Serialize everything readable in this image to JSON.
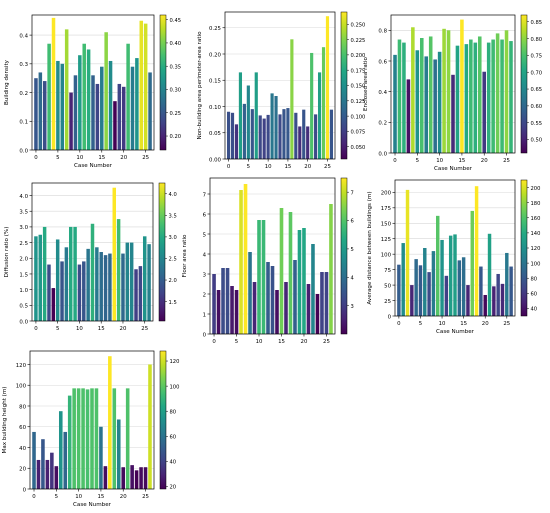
{
  "chart_data": [
    {
      "type": "bar",
      "xlabel": "Case Number",
      "ylabel": "Building density",
      "x": [
        0,
        1,
        2,
        3,
        4,
        5,
        6,
        7,
        8,
        9,
        10,
        11,
        12,
        13,
        14,
        15,
        16,
        17,
        18,
        19,
        20,
        21,
        22,
        23,
        24,
        25,
        26
      ],
      "values": [
        0.25,
        0.27,
        0.24,
        0.37,
        0.46,
        0.31,
        0.3,
        0.42,
        0.2,
        0.26,
        0.33,
        0.37,
        0.35,
        0.26,
        0.23,
        0.29,
        0.41,
        0.31,
        0.17,
        0.23,
        0.22,
        0.37,
        0.29,
        0.32,
        0.45,
        0.44,
        0.27
      ],
      "xticks": [
        0,
        5,
        10,
        15,
        20,
        25
      ],
      "yticks": [
        0.0,
        0.1,
        0.2,
        0.3,
        0.4
      ],
      "ylim": [
        0,
        0.47
      ],
      "colorbar": {
        "min": 0.17,
        "max": 0.46,
        "ticks": [
          0.2,
          0.25,
          0.3,
          0.35,
          0.4,
          0.45
        ]
      }
    },
    {
      "type": "bar",
      "xlabel": "",
      "ylabel": "Non-building area perimeter-area ratio",
      "x": [
        0,
        1,
        2,
        3,
        4,
        5,
        6,
        7,
        8,
        9,
        10,
        11,
        12,
        13,
        14,
        15,
        16,
        17,
        18,
        19,
        20,
        21,
        22,
        23,
        24,
        25,
        26
      ],
      "values": [
        0.09,
        0.088,
        0.066,
        0.165,
        0.105,
        0.14,
        0.095,
        0.165,
        0.083,
        0.077,
        0.084,
        0.125,
        0.12,
        0.085,
        0.095,
        0.097,
        0.228,
        0.088,
        0.062,
        0.094,
        0.062,
        0.202,
        0.085,
        0.165,
        0.213,
        0.272,
        0.094
      ],
      "xticks": [
        0,
        5,
        10,
        15,
        20,
        25
      ],
      "yticks": [
        0.0,
        0.05,
        0.1,
        0.15,
        0.2,
        0.25
      ],
      "ylim": [
        0,
        0.28
      ],
      "colorbar": {
        "min": 0.03,
        "max": 0.27,
        "ticks": [
          0.05,
          0.075,
          0.1,
          0.125,
          0.15,
          0.175,
          0.2,
          0.225,
          0.25
        ]
      }
    },
    {
      "type": "bar",
      "xlabel": "Case Number",
      "ylabel": "Enclosed area ratio",
      "x": [
        0,
        1,
        2,
        3,
        4,
        5,
        6,
        7,
        8,
        9,
        10,
        11,
        12,
        13,
        14,
        15,
        16,
        17,
        18,
        19,
        20,
        21,
        22,
        23,
        24,
        25,
        26
      ],
      "values": [
        0.64,
        0.74,
        0.72,
        0.48,
        0.82,
        0.67,
        0.75,
        0.63,
        0.76,
        0.61,
        0.66,
        0.81,
        0.8,
        0.51,
        0.7,
        0.87,
        0.71,
        0.74,
        0.72,
        0.76,
        0.53,
        0.72,
        0.74,
        0.78,
        0.74,
        0.8,
        0.73
      ],
      "xticks": [
        0,
        5,
        10,
        15,
        20,
        25
      ],
      "yticks": [
        0.0,
        0.2,
        0.4,
        0.6,
        0.8
      ],
      "ylim": [
        0,
        0.9
      ],
      "colorbar": {
        "min": 0.46,
        "max": 0.87,
        "ticks": [
          0.5,
          0.55,
          0.6,
          0.65,
          0.7,
          0.75,
          0.8,
          0.85
        ]
      }
    },
    {
      "type": "bar",
      "xlabel": "",
      "ylabel": "Diffusion ratio (%)",
      "x": [
        0,
        1,
        2,
        3,
        4,
        5,
        6,
        7,
        8,
        9,
        10,
        11,
        12,
        13,
        14,
        15,
        16,
        17,
        18,
        19,
        20,
        21,
        22,
        23,
        24,
        25,
        26
      ],
      "values": [
        2.7,
        2.75,
        3.0,
        1.8,
        1.05,
        2.6,
        1.9,
        2.35,
        3.0,
        3.0,
        1.8,
        1.9,
        2.3,
        3.1,
        2.35,
        2.2,
        2.1,
        2.15,
        4.25,
        3.25,
        2.15,
        2.5,
        2.5,
        1.65,
        1.75,
        2.7,
        2.45
      ],
      "xticks": [
        0,
        5,
        10,
        15,
        20,
        25
      ],
      "yticks": [
        0.0,
        0.5,
        1.0,
        1.5,
        2.0,
        2.5,
        3.0,
        3.5,
        4.0
      ],
      "ylim": [
        0,
        4.4
      ],
      "colorbar": {
        "min": 1.05,
        "max": 4.25,
        "ticks": [
          1.5,
          2.0,
          2.5,
          3.0,
          3.5,
          4.0
        ]
      }
    },
    {
      "type": "bar",
      "xlabel": "Case Number",
      "ylabel": "Floor area ratio",
      "x": [
        0,
        1,
        2,
        3,
        4,
        5,
        6,
        7,
        8,
        9,
        10,
        11,
        12,
        13,
        14,
        15,
        16,
        17,
        18,
        19,
        20,
        21,
        22,
        23,
        24,
        25,
        26
      ],
      "values": [
        3.0,
        2.2,
        3.3,
        3.3,
        2.4,
        2.2,
        7.2,
        7.5,
        4.1,
        2.6,
        5.7,
        5.7,
        3.6,
        3.4,
        2.2,
        6.3,
        2.6,
        6.1,
        3.7,
        5.2,
        5.3,
        2.5,
        4.5,
        2.0,
        3.1,
        3.1,
        6.5
      ],
      "xticks": [
        0,
        5,
        10,
        15,
        20,
        25
      ],
      "yticks": [
        0,
        1,
        2,
        3,
        4,
        5,
        6,
        7
      ],
      "ylim": [
        0,
        7.8
      ],
      "colorbar": {
        "min": 2.0,
        "max": 7.5,
        "ticks": [
          3,
          4,
          5,
          6,
          7
        ]
      }
    },
    {
      "type": "bar",
      "xlabel": "Case Number",
      "ylabel": "Average distance between buildings (m)",
      "x": [
        0,
        1,
        2,
        3,
        4,
        5,
        6,
        7,
        8,
        9,
        10,
        11,
        12,
        13,
        14,
        15,
        16,
        17,
        18,
        19,
        20,
        21,
        22,
        23,
        24,
        25,
        26
      ],
      "values": [
        83,
        118,
        204,
        50,
        92,
        82,
        110,
        71,
        105,
        162,
        123,
        65,
        130,
        132,
        90,
        95,
        50,
        170,
        210,
        80,
        34,
        133,
        48,
        68,
        52,
        102,
        80
      ],
      "xticks": [
        0,
        5,
        10,
        15,
        20,
        25
      ],
      "yticks": [
        0,
        25,
        50,
        75,
        100,
        125,
        150,
        175,
        200
      ],
      "ylim": [
        0,
        220
      ],
      "colorbar": {
        "min": 30,
        "max": 210,
        "ticks": [
          40,
          60,
          80,
          100,
          120,
          140,
          160,
          180,
          200
        ]
      }
    },
    {
      "type": "bar",
      "xlabel": "Case Number",
      "ylabel": "Max building height (m)",
      "x": [
        0,
        1,
        2,
        3,
        4,
        5,
        6,
        7,
        8,
        9,
        10,
        11,
        12,
        13,
        14,
        15,
        16,
        17,
        18,
        19,
        20,
        21,
        22,
        23,
        24,
        25,
        26
      ],
      "values": [
        55,
        28,
        48,
        28,
        35,
        22,
        75,
        55,
        90,
        97,
        97,
        97,
        96,
        97,
        97,
        60,
        22,
        128,
        97,
        67,
        21,
        97,
        23,
        18,
        21,
        21,
        120
      ],
      "xticks": [
        0,
        5,
        10,
        15,
        20,
        25
      ],
      "yticks": [
        0,
        20,
        40,
        60,
        80,
        100,
        120
      ],
      "ylim": [
        0,
        133
      ],
      "colorbar": {
        "min": 18,
        "max": 128,
        "ticks": [
          20,
          40,
          60,
          80,
          100,
          120
        ]
      }
    }
  ]
}
